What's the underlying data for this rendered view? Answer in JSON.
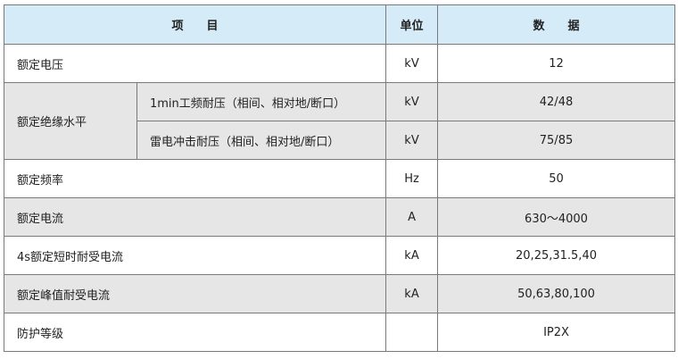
{
  "header": {
    "item": "项　　目",
    "unit": "单位",
    "data": "数　　据"
  },
  "rows": [
    {
      "name": "额定电压",
      "unit": "kV",
      "value": "12"
    },
    {
      "name": "额定绝缘水平",
      "subs": [
        {
          "name": "1min工频耐压（相间、相对地/断口）",
          "unit": "kV",
          "value": "42/48"
        },
        {
          "name": "雷电冲击耐压（相间、相对地/断口）",
          "unit": "kV",
          "value": "75/85"
        }
      ]
    },
    {
      "name": "额定频率",
      "unit": "Hz",
      "value": "50"
    },
    {
      "name": "额定电流",
      "unit": "A",
      "value": "630～4000"
    },
    {
      "name": "4s额定短时耐受电流",
      "unit": "kA",
      "value": "20,25,31.5,40"
    },
    {
      "name": "额定峰值耐受电流",
      "unit": "kA",
      "value": "50,63,80,100"
    },
    {
      "name": "防护等级",
      "unit": "",
      "value": "IP2X"
    }
  ],
  "colors": {
    "header_bg": "#d5ebf7",
    "gray_row": "#e6e6e6",
    "border": "#7a7a7a"
  }
}
